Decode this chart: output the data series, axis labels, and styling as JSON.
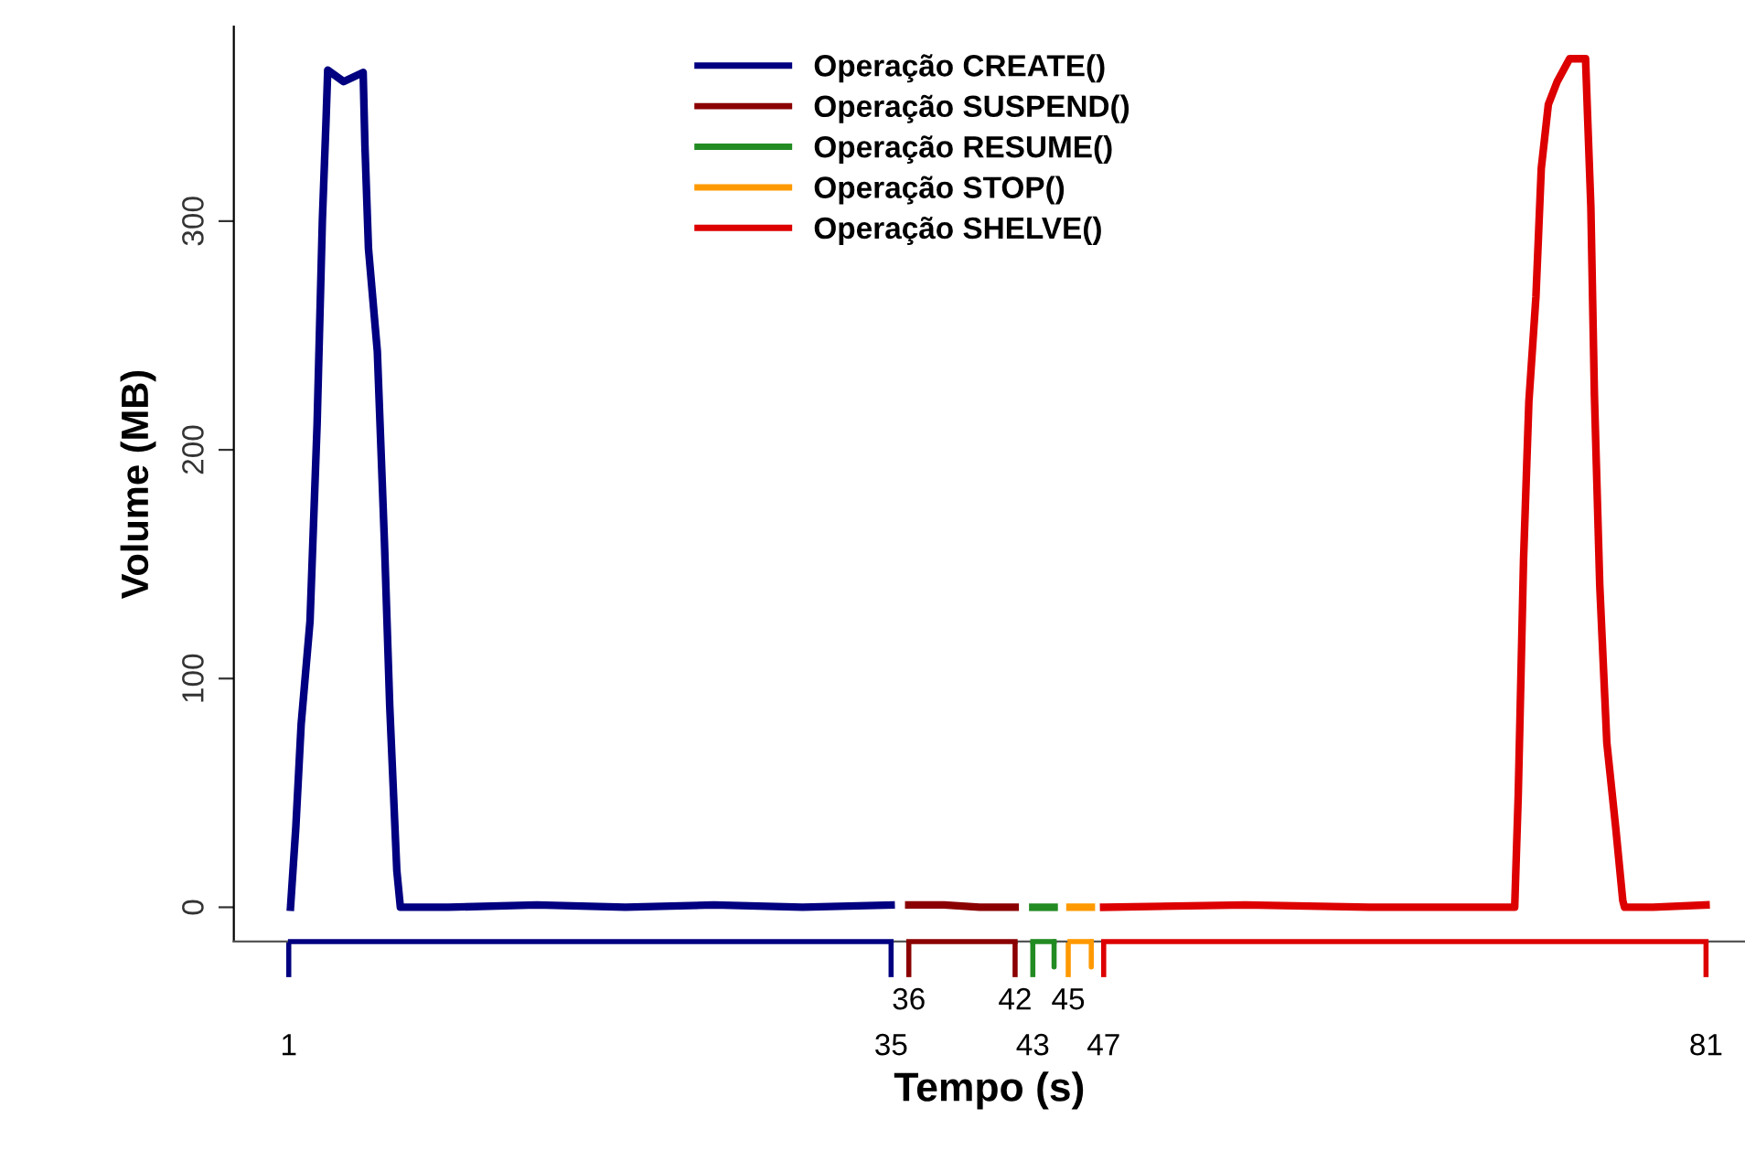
{
  "chart_data": {
    "type": "line",
    "xlabel": "Tempo (s)",
    "ylabel": "Volume (MB)",
    "xlim": [
      -2.1,
      83.2
    ],
    "ylim": [
      -15,
      385
    ],
    "xticks": [
      1,
      35,
      43,
      47,
      81
    ],
    "x2lim": [
      -2.1,
      83.2
    ],
    "x2ticks": [
      36,
      42,
      45
    ],
    "yticks": [
      0,
      100,
      200,
      300
    ],
    "grid": false,
    "legend": "top",
    "marker": "none",
    "line_style": "solid",
    "series": [
      {
        "name": "Operação CREATE()",
        "color": "#000080",
        "x": [
          1.1,
          1.4,
          1.7,
          2.2,
          2.6,
          2.9,
          3.1,
          3.2,
          4.1,
          5.2,
          5.3,
          5.5,
          6.0,
          6.4,
          6.7,
          7.1,
          7.3,
          10,
          15,
          20,
          25,
          30,
          35
        ],
        "values": [
          0,
          35,
          80,
          125,
          211,
          301,
          343,
          366,
          361,
          365,
          333,
          288,
          243,
          160,
          88,
          16,
          0,
          0,
          1,
          0,
          1,
          0,
          1
        ]
      },
      {
        "name": "Operação SUSPEND()",
        "color": "#8b0000",
        "x": [
          36,
          38,
          40,
          42
        ],
        "values": [
          1,
          1,
          0,
          0
        ]
      },
      {
        "name": "Operação RESUME()",
        "color": "#228b22",
        "x": [
          43,
          44.2
        ],
        "values": [
          0,
          0
        ]
      },
      {
        "name": "Operação STOP()",
        "color": "#ff9900",
        "x": [
          45.1,
          46.3
        ],
        "values": [
          0,
          0
        ]
      },
      {
        "name": "Operação SHELVE()",
        "color": "#dd0000",
        "x": [
          47,
          55,
          62,
          70.2,
          70.4,
          70.5,
          70.7,
          71.0,
          71.4,
          71.7,
          72.1,
          72.6,
          73.3,
          74.2,
          74.3,
          74.5,
          74.7,
          75.0,
          75.4,
          75.9,
          76.3,
          76.4,
          78,
          81
        ],
        "values": [
          0,
          1,
          0,
          0,
          49,
          83,
          152,
          221,
          267,
          323,
          351,
          361,
          371,
          371,
          349,
          306,
          224,
          141,
          72,
          35,
          3,
          0,
          0,
          1
        ]
      }
    ]
  }
}
